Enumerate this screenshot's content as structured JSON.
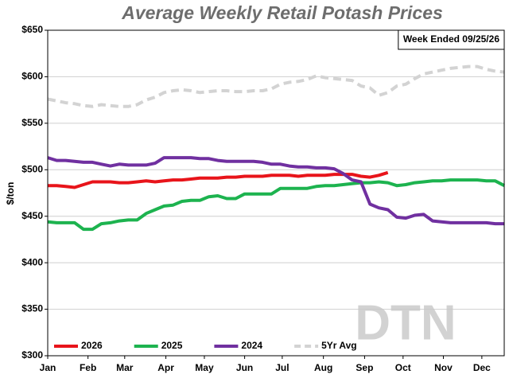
{
  "chart_data": {
    "type": "line",
    "title": "Average Weekly Retail Potash Prices",
    "annotation": "Week Ended 09/25/26",
    "watermark": "DTN",
    "ylabel": "$/ton",
    "x": [
      0,
      1,
      2,
      3,
      4,
      5,
      6,
      7,
      8,
      9,
      10,
      11,
      12,
      13,
      14,
      15,
      16,
      17,
      18,
      19,
      20,
      21,
      22,
      23,
      24,
      25,
      26,
      27,
      28,
      29,
      30,
      31,
      32,
      33,
      34,
      35,
      36,
      37,
      38,
      39,
      40,
      41,
      42,
      43,
      44,
      45,
      46,
      47,
      48,
      49,
      50,
      51
    ],
    "xlim": [
      0,
      51
    ],
    "xticks": [
      {
        "value": 0,
        "label": "Jan"
      },
      {
        "value": 4.5,
        "label": "Feb"
      },
      {
        "value": 8.6,
        "label": "Mar"
      },
      {
        "value": 13.2,
        "label": "Apr"
      },
      {
        "value": 17.5,
        "label": "May"
      },
      {
        "value": 22,
        "label": "Jun"
      },
      {
        "value": 26.2,
        "label": "Jul"
      },
      {
        "value": 30.8,
        "label": "Aug"
      },
      {
        "value": 35.4,
        "label": "Sep"
      },
      {
        "value": 39.7,
        "label": "Oct"
      },
      {
        "value": 44.2,
        "label": "Nov"
      },
      {
        "value": 48.5,
        "label": "Dec"
      }
    ],
    "ylim": [
      300,
      650
    ],
    "yticks": [
      {
        "value": 300,
        "label": "$300"
      },
      {
        "value": 350,
        "label": "$350"
      },
      {
        "value": 400,
        "label": "$400"
      },
      {
        "value": 450,
        "label": "$450"
      },
      {
        "value": 500,
        "label": "$500"
      },
      {
        "value": 550,
        "label": "$550"
      },
      {
        "value": 600,
        "label": "$600"
      },
      {
        "value": 650,
        "label": "$650"
      }
    ],
    "grid": true,
    "legend": "bottom-left",
    "series": [
      {
        "name": "2026",
        "color": "#e8141a",
        "values": [
          483,
          483,
          482,
          481,
          484,
          487,
          487,
          487,
          486,
          486,
          487,
          488,
          487,
          488,
          489,
          489,
          490,
          491,
          491,
          491,
          492,
          492,
          493,
          493,
          493,
          494,
          494,
          494,
          493,
          494,
          494,
          494,
          495,
          495,
          495,
          493,
          492,
          494,
          497,
          null,
          null,
          null,
          null,
          null,
          null,
          null,
          null,
          null,
          null,
          null,
          null,
          null
        ]
      },
      {
        "name": "2025",
        "color": "#1db34f",
        "values": [
          444,
          443,
          443,
          443,
          436,
          436,
          442,
          443,
          445,
          446,
          446,
          453,
          457,
          461,
          462,
          466,
          467,
          467,
          471,
          472,
          469,
          469,
          474,
          474,
          474,
          474,
          480,
          480,
          480,
          480,
          482,
          483,
          483,
          484,
          485,
          486,
          486,
          487,
          486,
          483,
          484,
          486,
          487,
          488,
          488,
          489,
          489,
          489,
          489,
          488,
          488,
          483
        ]
      },
      {
        "name": "2024",
        "color": "#7030a0",
        "values": [
          513,
          510,
          510,
          509,
          508,
          508,
          506,
          504,
          506,
          505,
          505,
          505,
          507,
          513,
          513,
          513,
          513,
          512,
          512,
          510,
          509,
          509,
          509,
          509,
          508,
          506,
          506,
          504,
          503,
          503,
          502,
          502,
          501,
          496,
          489,
          487,
          463,
          459,
          457,
          449,
          448,
          451,
          452,
          445,
          444,
          443,
          443,
          443,
          443,
          443,
          442,
          442
        ]
      },
      {
        "name": "5Yr Avg",
        "color": "#d3d3d3",
        "dashed": true,
        "values": [
          576,
          574,
          572,
          571,
          569,
          568,
          570,
          569,
          568,
          568,
          570,
          575,
          578,
          583,
          585,
          586,
          585,
          583,
          584,
          585,
          585,
          584,
          584,
          585,
          585,
          587,
          592,
          594,
          595,
          597,
          601,
          599,
          598,
          597,
          596,
          590,
          588,
          580,
          583,
          590,
          592,
          598,
          603,
          605,
          607,
          609,
          610,
          611,
          611,
          608,
          606,
          605
        ]
      }
    ]
  }
}
